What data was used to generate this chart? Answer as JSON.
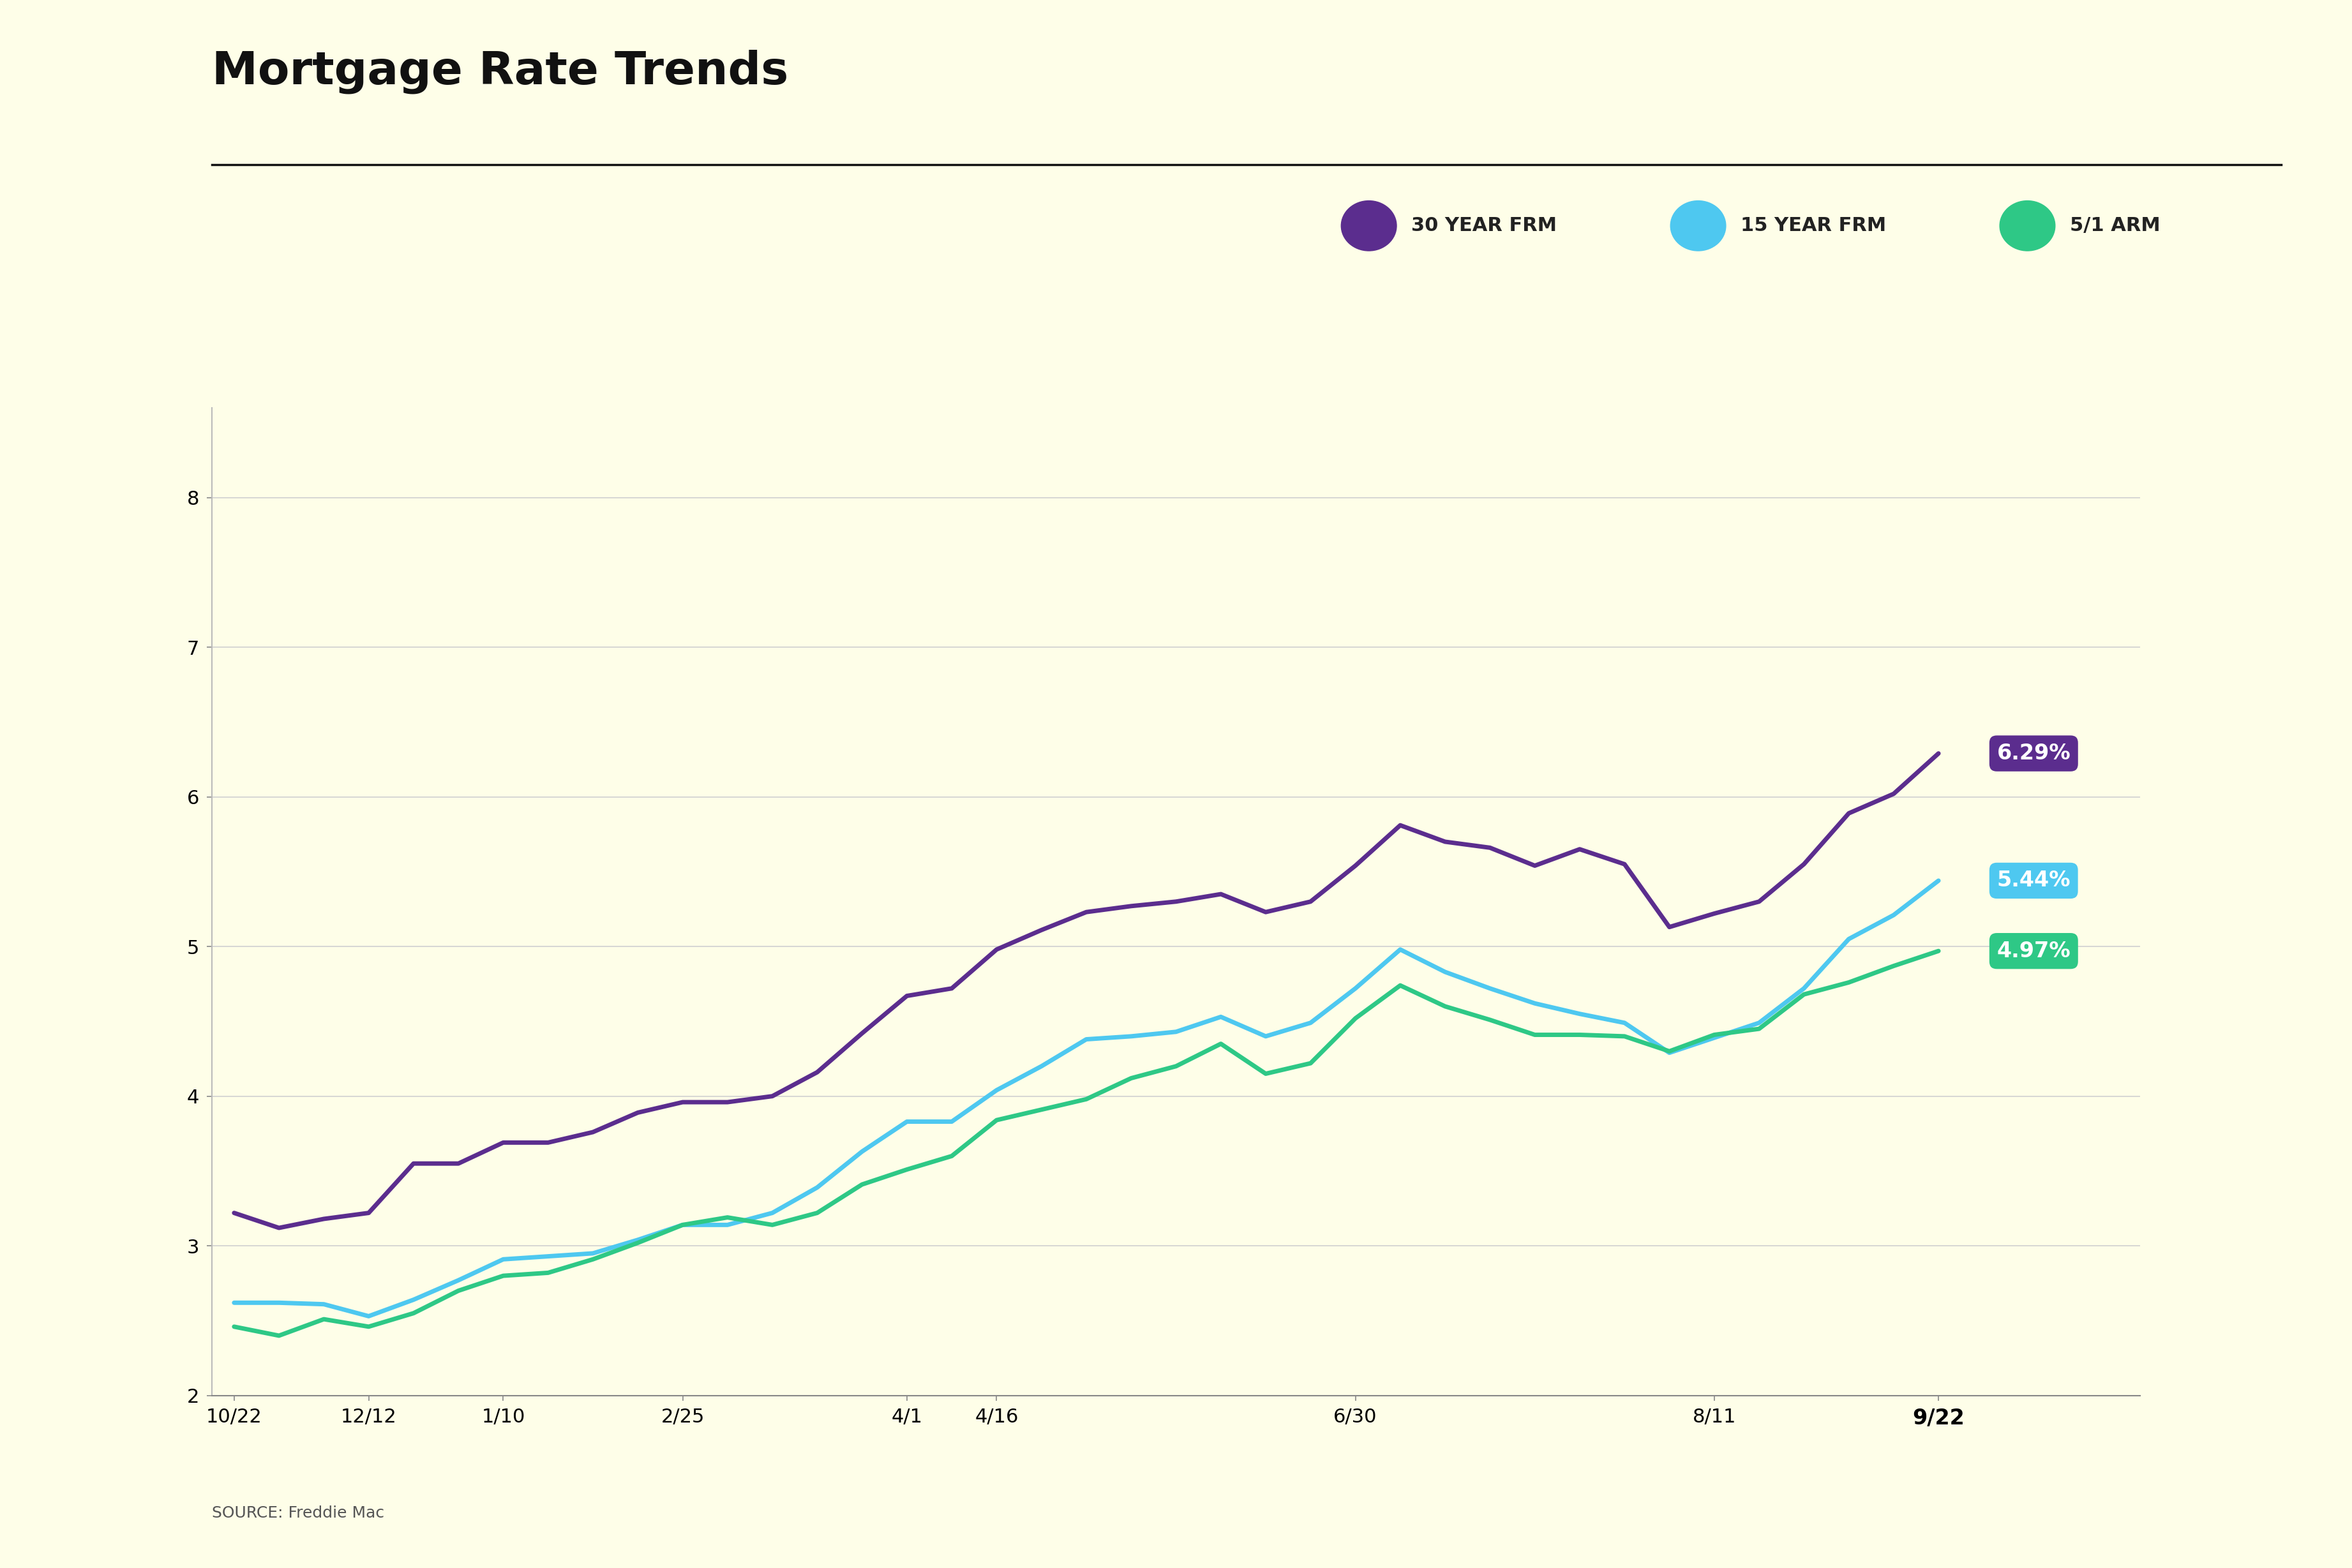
{
  "title": "Mortgage Rate Trends",
  "source": "SOURCE: Freddie Mac",
  "background_color": "#FEFEE8",
  "title_fontsize": 52,
  "legend_fontsize": 22,
  "tick_fontsize": 22,
  "source_fontsize": 18,
  "x_labels": [
    "10/22",
    "12/12",
    "1/10",
    "2/25",
    "4/1",
    "4/16",
    "6/30",
    "8/11",
    "9/22"
  ],
  "x_label_indices": [
    0,
    3,
    6,
    10,
    15,
    17,
    25,
    33,
    38
  ],
  "series": {
    "30yr": {
      "color": "#5b2d8e",
      "label": "30 YEAR FRM",
      "end_value": "6.29%",
      "label_bg": "#5b2d8e",
      "label_text_color": "#ffffff"
    },
    "15yr": {
      "color": "#4ec8f0",
      "label": "15 YEAR FRM",
      "end_value": "5.44%",
      "label_bg": "#4ec8f0",
      "label_text_color": "#ffffff"
    },
    "arm": {
      "color": "#2ec886",
      "label": "5/1 ARM",
      "end_value": "4.97%",
      "label_bg": "#2ec886",
      "label_text_color": "#ffffff"
    }
  },
  "data_30yr": [
    3.22,
    3.12,
    3.18,
    3.22,
    3.55,
    3.55,
    3.69,
    3.69,
    3.76,
    3.89,
    3.96,
    3.96,
    4.0,
    4.16,
    4.42,
    4.67,
    4.72,
    4.98,
    5.11,
    5.23,
    5.27,
    5.3,
    5.35,
    5.23,
    5.3,
    5.54,
    5.81,
    5.7,
    5.66,
    5.54,
    5.65,
    5.55,
    5.13,
    5.22,
    5.3,
    5.55,
    5.89,
    6.02,
    6.29
  ],
  "data_15yr": [
    2.62,
    2.62,
    2.61,
    2.53,
    2.64,
    2.77,
    2.91,
    2.93,
    2.95,
    3.04,
    3.14,
    3.14,
    3.22,
    3.39,
    3.63,
    3.83,
    3.83,
    4.04,
    4.2,
    4.38,
    4.4,
    4.43,
    4.53,
    4.4,
    4.49,
    4.72,
    4.98,
    4.83,
    4.72,
    4.62,
    4.55,
    4.49,
    4.29,
    4.39,
    4.49,
    4.72,
    5.05,
    5.21,
    5.44
  ],
  "data_arm": [
    2.46,
    2.4,
    2.51,
    2.46,
    2.55,
    2.7,
    2.8,
    2.82,
    2.91,
    3.02,
    3.14,
    3.19,
    3.14,
    3.22,
    3.41,
    3.51,
    3.6,
    3.84,
    3.91,
    3.98,
    4.12,
    4.2,
    4.35,
    4.15,
    4.22,
    4.52,
    4.74,
    4.6,
    4.51,
    4.41,
    4.41,
    4.4,
    4.3,
    4.41,
    4.45,
    4.68,
    4.76,
    4.87,
    4.97
  ]
}
